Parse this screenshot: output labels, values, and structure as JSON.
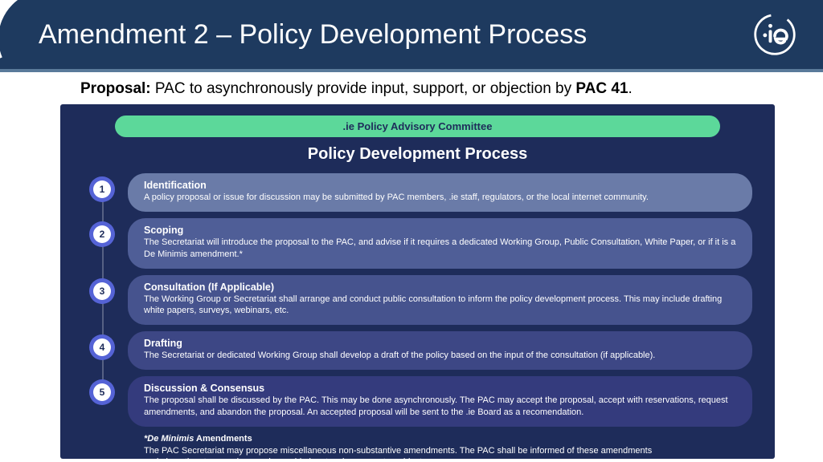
{
  "header": {
    "title": "Amendment 2 – Policy Development Process",
    "bg_color": "#1e3a5f",
    "accent_line": "#5a7a9a"
  },
  "proposal": {
    "label": "Proposal:",
    "text": " PAC to asynchronously provide input, support, or objection by ",
    "bold_tail": "PAC 41",
    "period": "."
  },
  "panel": {
    "bg_color": "#1e2c5a",
    "committee_label": ".ie Policy Advisory Committee",
    "committee_bg": "#5cd89a",
    "title": "Policy Development Process",
    "circle_color": "#5563d6",
    "steps": [
      {
        "num": "1",
        "title": "Identification",
        "desc": "A policy proposal or issue for discussion may be submitted by PAC members, .ie staff, regulators, or the local internet community.",
        "bg": "#6a7ba8"
      },
      {
        "num": "2",
        "title": "Scoping",
        "desc": "The Secretariat will introduce the proposal to the PAC, and advise if it requires a dedicated Working Group, Public Consultation, White Paper, or if it is a De Minimis amendment.*",
        "bg": "#4f5e97"
      },
      {
        "num": "3",
        "title": "Consultation (If Applicable)",
        "desc": "The Working Group or Secretariat shall arrange and conduct public consultation to inform the policy development process. This may include drafting white papers, surveys, webinars, etc.",
        "bg": "#46538e"
      },
      {
        "num": "4",
        "title": "Drafting",
        "desc": "The Secretariat or dedicated Working Group shall develop a draft of the policy based on the input of the consultation (if applicable).",
        "bg": "#3d4785"
      },
      {
        "num": "5",
        "title": "Discussion & Consensus",
        "desc": "The proposal shall be discussed by the PAC. This may be done asynchronously. The PAC may accept the proposal, accept with reservations, request amendments, and abandon the proposal. An accepted proposal will be sent to the .ie Board as a recomendation.",
        "bg": "#343b7d"
      }
    ],
    "footnote": {
      "title_em": "*De Minimis",
      "title_rest": " Amendments",
      "body": "The PAC Secretariat may propose miscellaneous non-substantive amendments.  The PAC shall be informed of these amendments and given time to asynchronously provide input, voice support or object."
    }
  }
}
